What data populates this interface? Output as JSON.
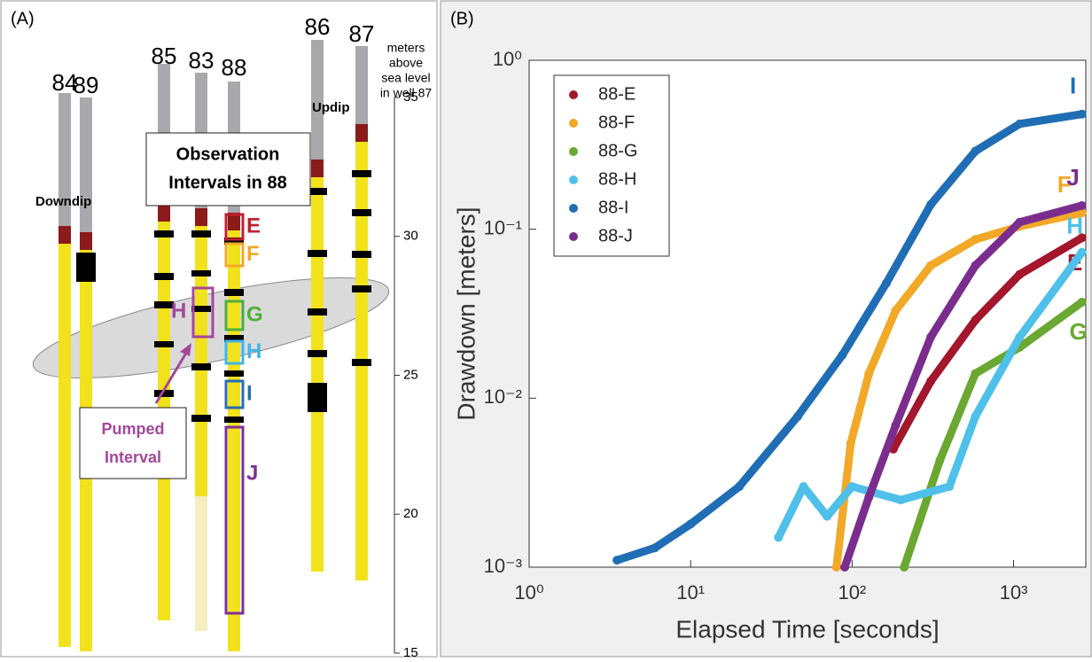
{
  "panel_a": {
    "panel_label": "(A)",
    "wells": [
      {
        "label": "84"
      },
      {
        "label": "89"
      },
      {
        "label": "85"
      },
      {
        "label": "83"
      },
      {
        "label": "88"
      },
      {
        "label": "86"
      },
      {
        "label": "87"
      }
    ],
    "downdip": "Downdip",
    "updip": "Updip",
    "observation_box": [
      "Observation",
      "Intervals in 88"
    ],
    "pumped_box": [
      "Pumped",
      "Interval"
    ],
    "pumped_letter": {
      "label": "H",
      "color": "#a4479c"
    },
    "intervals": [
      {
        "label": "E",
        "color": "#c0202e"
      },
      {
        "label": "F",
        "color": "#f2a928"
      },
      {
        "label": "G",
        "color": "#4caf3a"
      },
      {
        "label": "H",
        "color": "#3fb4e6"
      },
      {
        "label": "I",
        "color": "#2a6db5"
      },
      {
        "label": "J",
        "color": "#7b3196"
      }
    ],
    "depth_axis": {
      "label": [
        "meters",
        "above",
        "sea level",
        "in well 87"
      ],
      "ylim": [
        15,
        35
      ],
      "ticks": [
        35,
        30,
        25,
        20,
        15
      ]
    }
  },
  "chart_data": {
    "type": "scatter",
    "panel_label": "(B)",
    "x_label": "Elapsed Time [seconds]",
    "y_label": "Drawdown [meters]",
    "log_x": true,
    "log_y": true,
    "xlim": [
      1,
      2800
    ],
    "ylim": [
      0.001,
      1
    ],
    "xticks": [
      {
        "value": 1,
        "label": "10⁰"
      },
      {
        "value": 10,
        "label": "10¹"
      },
      {
        "value": 100,
        "label": "10²"
      },
      {
        "value": 1000,
        "label": "10³"
      }
    ],
    "yticks": [
      {
        "value": 0.001,
        "label": "10⁻³"
      },
      {
        "value": 0.01,
        "label": "10⁻²"
      },
      {
        "value": 0.1,
        "label": "10⁻¹"
      },
      {
        "value": 1,
        "label": "10⁰"
      }
    ],
    "legend": "top-left",
    "series": [
      {
        "name": "88-E",
        "color": "#a3162b",
        "end_label": "E",
        "x": [
          180,
          307,
          580,
          1090,
          2650
        ],
        "values": [
          0.005,
          0.0126,
          0.029,
          0.054,
          0.089
        ]
      },
      {
        "name": "88-F",
        "color": "#f2a928",
        "end_label": "F",
        "x": [
          80,
          98,
          127,
          186,
          307,
          580,
          1090,
          2650
        ],
        "values": [
          0.001,
          0.0054,
          0.014,
          0.033,
          0.061,
          0.087,
          0.104,
          0.125
        ]
      },
      {
        "name": "88-G",
        "color": "#6aa832",
        "end_label": "G",
        "x": [
          210,
          350,
          580,
          1090,
          2650
        ],
        "values": [
          0.001,
          0.0043,
          0.014,
          0.02,
          0.037
        ]
      },
      {
        "name": "88-H",
        "color": "#4ec0ea",
        "end_label": "H",
        "x": [
          35,
          50,
          70,
          100,
          200,
          400,
          580,
          1090,
          2650
        ],
        "values": [
          0.0015,
          0.003,
          0.002,
          0.003,
          0.0025,
          0.003,
          0.0078,
          0.023,
          0.073
        ]
      },
      {
        "name": "88-I",
        "color": "#1f6eb5",
        "end_label": "I",
        "x": [
          3.5,
          6,
          10,
          20,
          46,
          87,
          163,
          307,
          580,
          1090,
          2650
        ],
        "values": [
          0.0011,
          0.0013,
          0.0018,
          0.003,
          0.0078,
          0.018,
          0.048,
          0.14,
          0.29,
          0.42,
          0.48
        ]
      },
      {
        "name": "88-J",
        "color": "#7b2d8e",
        "end_label": "J",
        "x": [
          90,
          127,
          186,
          307,
          580,
          1090,
          2650
        ],
        "values": [
          0.001,
          0.0026,
          0.0069,
          0.023,
          0.061,
          0.11,
          0.138
        ]
      }
    ]
  }
}
